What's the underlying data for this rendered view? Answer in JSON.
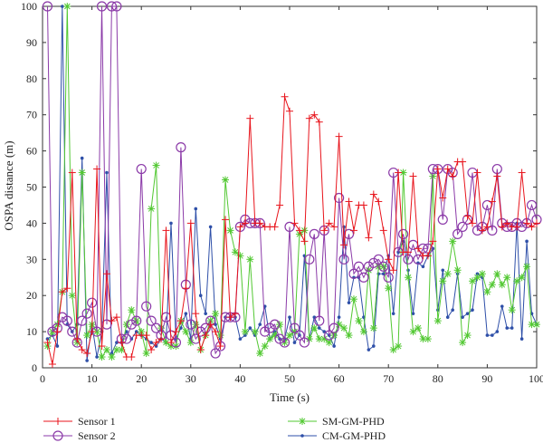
{
  "chart_data": {
    "type": "line",
    "xlabel": "Time (s)",
    "ylabel": "OSPA distance (m)",
    "xlim": [
      0,
      100
    ],
    "ylim": [
      0,
      100
    ],
    "xticks": [
      "0",
      "10",
      "20",
      "30",
      "40",
      "50",
      "60",
      "70",
      "80",
      "90",
      "100"
    ],
    "yticks": [
      "0",
      "10",
      "20",
      "30",
      "40",
      "50",
      "60",
      "70",
      "80",
      "90",
      "100"
    ],
    "grid": false,
    "legend_position": "bottom",
    "series": [
      {
        "name": "Sensor 1",
        "color": "#e8141c",
        "marker": "plus",
        "x": [
          1,
          2,
          3,
          4,
          5,
          6,
          7,
          8,
          9,
          10,
          11,
          12,
          13,
          14,
          15,
          16,
          17,
          18,
          19,
          20,
          21,
          22,
          23,
          24,
          25,
          26,
          27,
          28,
          29,
          30,
          31,
          32,
          33,
          34,
          35,
          36,
          37,
          38,
          39,
          40,
          41,
          42,
          43,
          44,
          45,
          46,
          47,
          48,
          49,
          50,
          51,
          52,
          53,
          54,
          55,
          56,
          57,
          58,
          59,
          60,
          61,
          62,
          63,
          64,
          65,
          66,
          67,
          68,
          69,
          70,
          71,
          72,
          73,
          74,
          75,
          76,
          77,
          78,
          79,
          80,
          81,
          82,
          83,
          84,
          85,
          86,
          87,
          88,
          89,
          90,
          91,
          92,
          93,
          94,
          95,
          96,
          97,
          98,
          99,
          100
        ],
        "y": [
          7,
          1,
          10,
          21,
          22,
          54,
          8,
          5,
          4,
          10,
          55,
          6,
          26,
          13,
          14,
          7,
          3,
          3,
          9,
          9,
          9,
          5,
          7,
          8,
          38,
          7,
          10,
          13,
          22,
          40,
          15,
          5,
          9,
          12,
          10,
          6,
          41,
          14,
          15,
          39,
          40,
          69,
          40,
          40,
          39,
          39,
          39,
          45,
          75,
          71,
          40,
          38,
          35,
          69,
          70,
          68,
          38,
          40,
          39,
          64,
          34,
          46,
          38,
          45,
          45,
          36,
          48,
          46,
          38,
          30,
          27,
          54,
          32,
          32,
          53,
          33,
          31,
          31,
          35,
          55,
          47,
          55,
          53,
          57,
          57,
          42,
          40,
          54,
          38,
          39,
          46,
          53,
          39,
          40,
          39,
          39,
          54,
          40,
          39,
          40
        ]
      },
      {
        "name": "Sensor 2",
        "color": "#8b3aa8",
        "marker": "circle",
        "x": [
          1,
          2,
          3,
          4,
          5,
          6,
          7,
          8,
          9,
          10,
          11,
          12,
          13,
          14,
          15,
          16,
          17,
          18,
          19,
          20,
          21,
          22,
          23,
          24,
          25,
          26,
          27,
          28,
          29,
          30,
          31,
          32,
          33,
          34,
          35,
          36,
          37,
          38,
          39,
          40,
          41,
          42,
          43,
          44,
          45,
          46,
          47,
          48,
          49,
          50,
          51,
          52,
          53,
          54,
          55,
          56,
          57,
          58,
          59,
          60,
          61,
          62,
          63,
          64,
          65,
          66,
          67,
          68,
          69,
          70,
          71,
          72,
          73,
          74,
          75,
          76,
          77,
          78,
          79,
          80,
          81,
          82,
          83,
          84,
          85,
          86,
          87,
          88,
          89,
          90,
          91,
          92,
          93,
          94,
          95,
          96,
          97,
          98,
          99,
          100
        ],
        "y": [
          100,
          10,
          11,
          14,
          13,
          10,
          7,
          13,
          15,
          18,
          10,
          100,
          12,
          100,
          100,
          8,
          8,
          12,
          13,
          55,
          17,
          13,
          11,
          9,
          14,
          9,
          7,
          61,
          23,
          12,
          8,
          10,
          11,
          13,
          4,
          6,
          14,
          14,
          14,
          39,
          41,
          40,
          40,
          40,
          10,
          11,
          12,
          8,
          7,
          39,
          11,
          9,
          7,
          30,
          37,
          13,
          38,
          9,
          11,
          47,
          30,
          37,
          26,
          28,
          25,
          28,
          29,
          30,
          28,
          25,
          54,
          32,
          37,
          30,
          34,
          30,
          33,
          33,
          55,
          55,
          41,
          55,
          54,
          37,
          39,
          41,
          54,
          38,
          39,
          45,
          38,
          55,
          40,
          39,
          39,
          40,
          39,
          40,
          45,
          41
        ]
      },
      {
        "name": "SM-GM-PHD",
        "color": "#52c832",
        "marker": "asterisk",
        "x": [
          1,
          2,
          3,
          4,
          5,
          6,
          7,
          8,
          9,
          10,
          11,
          12,
          13,
          14,
          15,
          16,
          17,
          18,
          19,
          20,
          21,
          22,
          23,
          24,
          25,
          26,
          27,
          28,
          29,
          30,
          31,
          32,
          33,
          34,
          35,
          36,
          37,
          38,
          39,
          40,
          41,
          42,
          43,
          44,
          45,
          46,
          47,
          48,
          49,
          50,
          51,
          52,
          53,
          54,
          55,
          56,
          57,
          58,
          59,
          60,
          61,
          62,
          63,
          64,
          65,
          66,
          67,
          68,
          69,
          70,
          71,
          72,
          73,
          74,
          75,
          76,
          77,
          78,
          79,
          80,
          81,
          82,
          83,
          84,
          85,
          86,
          87,
          88,
          89,
          90,
          91,
          92,
          93,
          94,
          95,
          96,
          97,
          98,
          99,
          100
        ],
        "y": [
          6,
          10,
          12,
          21,
          100,
          20,
          7,
          54,
          9,
          12,
          10,
          3,
          5,
          3,
          5,
          5,
          12,
          16,
          13,
          10,
          4,
          44,
          56,
          11,
          7,
          6,
          6,
          13,
          10,
          7,
          12,
          5,
          9,
          13,
          15,
          9,
          52,
          38,
          32,
          31,
          10,
          30,
          10,
          4,
          6,
          8,
          9,
          12,
          7,
          9,
          10,
          37,
          38,
          8,
          11,
          8,
          8,
          7,
          9,
          12,
          11,
          9,
          19,
          13,
          10,
          27,
          11,
          28,
          28,
          22,
          5,
          6,
          54,
          25,
          10,
          11,
          8,
          8,
          53,
          13,
          24,
          26,
          35,
          27,
          7,
          9,
          24,
          25,
          26,
          21,
          23,
          26,
          23,
          25,
          16,
          24,
          25,
          28,
          12,
          12
        ]
      },
      {
        "name": "CM-GM-PHD",
        "color": "#2e4fa8",
        "marker": "dot",
        "x": [
          1,
          2,
          3,
          4,
          5,
          6,
          7,
          8,
          9,
          10,
          11,
          12,
          13,
          14,
          15,
          16,
          17,
          18,
          19,
          20,
          21,
          22,
          23,
          24,
          25,
          26,
          27,
          28,
          29,
          30,
          31,
          32,
          33,
          34,
          35,
          36,
          37,
          38,
          39,
          40,
          41,
          42,
          43,
          44,
          45,
          46,
          47,
          48,
          49,
          50,
          51,
          52,
          53,
          54,
          55,
          56,
          57,
          58,
          59,
          60,
          61,
          62,
          63,
          64,
          65,
          66,
          67,
          68,
          69,
          70,
          71,
          72,
          73,
          74,
          75,
          76,
          77,
          78,
          79,
          80,
          81,
          82,
          83,
          84,
          85,
          86,
          87,
          88,
          89,
          90,
          91,
          92,
          93,
          94,
          95,
          96,
          97,
          98,
          99,
          100
        ],
        "y": [
          8,
          9,
          6,
          100,
          12,
          10,
          12,
          58,
          2,
          12,
          3,
          10,
          54,
          4,
          7,
          7,
          10,
          8,
          10,
          9,
          8,
          7,
          6,
          8,
          7,
          40,
          8,
          11,
          15,
          8,
          44,
          20,
          15,
          39,
          12,
          8,
          14,
          14,
          14,
          8,
          9,
          11,
          9,
          12,
          17,
          8,
          10,
          8,
          8,
          14,
          7,
          9,
          31,
          8,
          14,
          11,
          10,
          9,
          6,
          14,
          39,
          18,
          25,
          25,
          14,
          5,
          6,
          26,
          26,
          31,
          15,
          32,
          35,
          27,
          15,
          29,
          28,
          31,
          33,
          16,
          27,
          14,
          16,
          26,
          14,
          15,
          16,
          26,
          25,
          9,
          9,
          10,
          17,
          11,
          11,
          40,
          8,
          35,
          15,
          12
        ]
      }
    ]
  }
}
